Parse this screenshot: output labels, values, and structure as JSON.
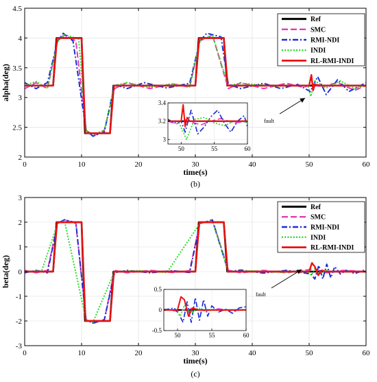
{
  "charts": [
    {
      "id": "b",
      "caption": "(b)",
      "chart_data": {
        "type": "line",
        "xlabel": "time(s)",
        "ylabel": "alpha(deg)",
        "xlim": [
          0,
          60
        ],
        "ylim": [
          2,
          4.5
        ],
        "xticks": [
          0,
          10,
          20,
          30,
          40,
          50,
          60
        ],
        "yticks": [
          2,
          2.5,
          3,
          3.5,
          4,
          4.5
        ],
        "grid": true,
        "legend_position": "top-right",
        "annotation": "fault",
        "reference_levels": {
          "base": 3.2,
          "high": 4.0,
          "low": 2.4
        },
        "series": [
          {
            "name": "Ref",
            "color": "#000000",
            "dash": "solid",
            "x": [
              0,
              5,
              5.6,
              10,
              10.6,
              15,
              15.6,
              30,
              30.6,
              35,
              35.6,
              50,
              50.4,
              50.7,
              51,
              60
            ],
            "y": [
              3.2,
              3.2,
              4.0,
              4.0,
              2.4,
              2.4,
              3.2,
              3.2,
              4.0,
              4.0,
              3.2,
              3.2,
              3.2,
              3.2,
              3.2,
              3.2
            ]
          },
          {
            "name": "SMC",
            "color": "#e83ab5",
            "dash": "dash",
            "x": [
              0,
              2,
              4,
              5.8,
              7,
              9,
              10.8,
              12,
              14,
              15.8,
              18,
              22,
              26,
              29,
              30.8,
              33,
              35.8,
              38,
              42,
              46,
              49,
              50.5,
              52,
              55,
              58,
              60
            ],
            "y": [
              3.15,
              3.25,
              3.15,
              3.95,
              4.05,
              3.95,
              2.45,
              2.35,
              2.45,
              3.15,
              3.25,
              3.15,
              3.23,
              3.17,
              3.95,
              4.05,
              3.15,
              3.25,
              3.15,
              3.24,
              3.17,
              3.22,
              3.18,
              3.25,
              3.12,
              3.2
            ]
          },
          {
            "name": "RMI-NDI",
            "color": "#1a2ed6",
            "dash": "dashdot",
            "x": [
              0,
              2,
              4,
              5.8,
              6.8,
              8.5,
              10.8,
              12,
              14,
              15.8,
              18,
              21,
              25,
              29,
              30.8,
              32,
              34.5,
              35.8,
              38,
              42,
              45,
              48,
              50.2,
              51.5,
              53,
              55,
              57,
              60
            ],
            "y": [
              3.25,
              3.15,
              3.25,
              3.95,
              4.08,
              3.95,
              2.45,
              2.35,
              2.42,
              3.22,
              3.15,
              3.25,
              3.16,
              3.24,
              3.95,
              4.08,
              4.02,
              3.22,
              3.15,
              3.24,
              3.15,
              3.22,
              3.1,
              3.35,
              3.05,
              3.3,
              3.1,
              3.25
            ]
          },
          {
            "name": "INDI",
            "color": "#22dd22",
            "dash": "dot",
            "x": [
              0,
              2,
              4,
              5.8,
              7,
              9.5,
              10.8,
              12,
              14,
              15.8,
              18,
              22,
              26,
              29,
              30.8,
              33,
              35.8,
              38,
              44,
              49.8,
              50.3,
              51,
              53,
              55.5,
              58,
              60
            ],
            "y": [
              3.2,
              3.27,
              3.15,
              3.95,
              4.06,
              3.98,
              2.45,
              2.38,
              2.45,
              3.2,
              3.25,
              3.17,
              3.23,
              3.18,
              3.95,
              4.05,
              3.2,
              3.24,
              3.19,
              3.2,
              3.02,
              3.28,
              3.16,
              3.28,
              3.15,
              3.2
            ]
          },
          {
            "name": "RL-RMI-INDI",
            "color": "#ee1111",
            "dash": "solid",
            "x": [
              0,
              5,
              5.7,
              10,
              10.7,
              15,
              15.7,
              30,
              30.7,
              35,
              35.7,
              50,
              50.4,
              50.7,
              51,
              52,
              60
            ],
            "y": [
              3.2,
              3.2,
              4.0,
              4.0,
              2.4,
              2.4,
              3.2,
              3.2,
              4.0,
              4.0,
              3.2,
              3.2,
              3.38,
              3.12,
              3.22,
              3.2,
              3.2
            ]
          }
        ],
        "inset": {
          "xlim": [
            48,
            60
          ],
          "ylim": [
            2.95,
            3.4
          ],
          "xticks": [
            50,
            55,
            60
          ],
          "yticks": [
            3,
            3.2,
            3.4
          ],
          "series": [
            {
              "name": "Ref",
              "x": [
                48,
                60
              ],
              "y": [
                3.2,
                3.2
              ]
            },
            {
              "name": "SMC",
              "x": [
                48,
                49.3,
                50.4,
                51.5,
                53,
                54.5,
                56,
                58,
                60
              ],
              "y": [
                3.2,
                3.17,
                3.22,
                3.19,
                3.16,
                3.2,
                3.23,
                3.18,
                3.2
              ]
            },
            {
              "name": "RMI-NDI",
              "x": [
                48,
                49,
                50,
                50.6,
                51.5,
                52.5,
                53.5,
                54.5,
                55.5,
                56.5,
                57.5,
                58.5,
                59.5,
                60
              ],
              "y": [
                3.22,
                3.18,
                3.2,
                3.08,
                3.32,
                3.06,
                3.14,
                3.25,
                3.32,
                3.18,
                3.08,
                3.2,
                3.26,
                3.14
              ]
            },
            {
              "name": "INDI",
              "x": [
                48,
                49.5,
                50.2,
                50.8,
                52,
                53.5,
                55,
                56.5,
                58,
                60
              ],
              "y": [
                3.2,
                3.2,
                3.1,
                3.0,
                3.22,
                3.24,
                3.18,
                3.15,
                3.2,
                3.19
              ]
            },
            {
              "name": "RL-RMI-INDI",
              "x": [
                48,
                50,
                50.3,
                50.6,
                50.9,
                51.3,
                52,
                60
              ],
              "y": [
                3.2,
                3.2,
                3.38,
                3.14,
                3.24,
                3.2,
                3.2,
                3.2
              ]
            }
          ]
        }
      }
    },
    {
      "id": "c",
      "caption": "(c)",
      "chart_data": {
        "type": "line",
        "xlabel": "time(s)",
        "ylabel": "beta(deg)",
        "xlim": [
          0,
          60
        ],
        "ylim": [
          -3,
          3
        ],
        "xticks": [
          0,
          10,
          20,
          30,
          40,
          50,
          60
        ],
        "yticks": [
          -3,
          -2,
          -1,
          0,
          1,
          2,
          3
        ],
        "grid": true,
        "legend_position": "top-right",
        "annotation": "fault",
        "series": [
          {
            "name": "Ref",
            "color": "#000000",
            "dash": "solid",
            "x": [
              0,
              5,
              5.6,
              10,
              10.6,
              15,
              15.6,
              30,
              30.6,
              35,
              35.6,
              60
            ],
            "y": [
              0,
              0,
              2,
              2,
              -2,
              -2,
              0,
              0,
              2,
              2,
              0,
              0
            ]
          },
          {
            "name": "SMC",
            "color": "#e83ab5",
            "dash": "dash",
            "x": [
              0,
              2,
              4,
              5.8,
              7,
              9,
              10.8,
              12,
              14,
              15.8,
              18,
              22,
              26,
              29,
              30.8,
              33,
              35.8,
              38,
              42,
              46,
              49,
              51,
              53,
              56,
              60
            ],
            "y": [
              0.05,
              -0.05,
              0.05,
              1.95,
              2.1,
              1.95,
              -1.95,
              -2.1,
              -1.95,
              0.05,
              -0.05,
              0.05,
              -0.04,
              0.04,
              1.95,
              2.1,
              0.05,
              -0.05,
              0.05,
              -0.05,
              0.05,
              0.1,
              -0.05,
              0.05,
              0
            ]
          },
          {
            "name": "RMI-NDI",
            "color": "#1a2ed6",
            "dash": "dashdot",
            "x": [
              0,
              2,
              4,
              5.8,
              7,
              9,
              10.8,
              12,
              14,
              15.8,
              18,
              22,
              26,
              29,
              30.8,
              33,
              35.8,
              38,
              42,
              46,
              49,
              50.3,
              51,
              51.7,
              52.4,
              53.1,
              53.8,
              54.5,
              55.5,
              56.5,
              58,
              60
            ],
            "y": [
              -0.05,
              0.05,
              -0.05,
              1.95,
              2.1,
              1.98,
              -1.95,
              -2.08,
              -1.95,
              -0.05,
              0.05,
              -0.05,
              0.04,
              -0.04,
              1.95,
              2.08,
              0.0,
              0.06,
              -0.06,
              0.05,
              -0.05,
              -0.1,
              -0.3,
              0.25,
              -0.3,
              0.3,
              -0.25,
              0.2,
              -0.1,
              0.05,
              -0.08,
              0.08
            ]
          },
          {
            "name": "INDI",
            "color": "#22dd22",
            "dash": "dot",
            "x": [
              0,
              3,
              5.8,
              7,
              10.8,
              12,
              15.8,
              20,
              25,
              30.8,
              33,
              35.8,
              40,
              45,
              49.8,
              50.4,
              51,
              52,
              53,
              54,
              60
            ],
            "y": [
              0,
              0.04,
              1.95,
              2.05,
              -1.95,
              -2.05,
              0,
              0.04,
              -0.04,
              1.95,
              2.05,
              0,
              0.03,
              -0.03,
              0,
              -0.15,
              0.12,
              -0.08,
              0.05,
              0,
              0
            ]
          },
          {
            "name": "RL-RMI-INDI",
            "color": "#ee1111",
            "dash": "solid",
            "x": [
              0,
              5,
              5.7,
              10,
              10.7,
              15,
              15.7,
              30,
              30.7,
              35,
              35.7,
              50,
              50.5,
              51,
              51.6,
              52.2,
              53,
              60
            ],
            "y": [
              0,
              0,
              2,
              2,
              -2,
              -2,
              0,
              0,
              2,
              2,
              0,
              0,
              0.35,
              0.2,
              -0.15,
              0.05,
              0,
              0
            ]
          }
        ],
        "inset": {
          "xlim": [
            48,
            60
          ],
          "ylim": [
            -0.5,
            0.5
          ],
          "xticks": [
            50,
            55,
            60
          ],
          "yticks": [
            -0.5,
            0,
            0.5
          ],
          "series": [
            {
              "name": "Ref",
              "x": [
                48,
                60
              ],
              "y": [
                0,
                0
              ]
            },
            {
              "name": "SMC",
              "x": [
                48,
                50,
                52,
                54,
                56,
                58,
                60
              ],
              "y": [
                0.02,
                -0.03,
                0.04,
                -0.02,
                0.03,
                -0.02,
                0.01
              ]
            },
            {
              "name": "RMI-NDI",
              "x": [
                48,
                49.5,
                50.2,
                50.8,
                51.4,
                52,
                52.6,
                53.2,
                53.8,
                54.4,
                55,
                56,
                57,
                58,
                59,
                60
              ],
              "y": [
                0,
                0.05,
                -0.1,
                -0.3,
                0.2,
                -0.3,
                0.3,
                -0.25,
                0.25,
                -0.15,
                0.1,
                -0.05,
                0.02,
                -0.08,
                0.05,
                0.08
              ]
            },
            {
              "name": "INDI",
              "x": [
                48,
                49.8,
                50.4,
                51,
                52,
                53,
                54,
                55,
                60
              ],
              "y": [
                0,
                0,
                -0.15,
                0.12,
                -0.08,
                0.05,
                -0.02,
                0,
                0
              ]
            },
            {
              "name": "RL-RMI-INDI",
              "x": [
                48,
                50,
                50.5,
                51,
                51.6,
                52.2,
                53,
                60
              ],
              "y": [
                0,
                0,
                0.32,
                0.25,
                -0.15,
                0.05,
                0,
                0
              ]
            }
          ]
        }
      }
    }
  ]
}
